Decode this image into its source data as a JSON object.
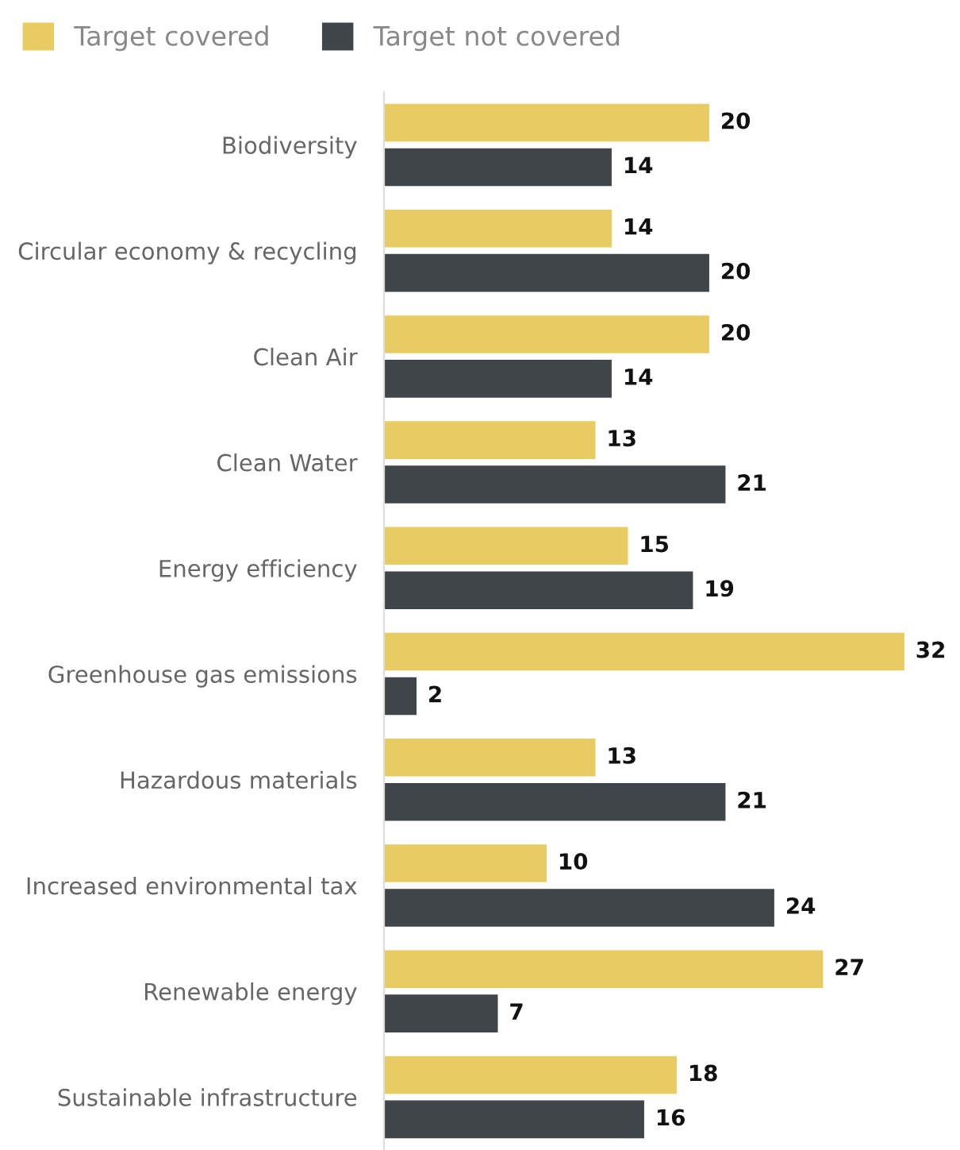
{
  "chart_data": {
    "type": "bar",
    "orientation": "horizontal",
    "categories": [
      "Biodiversity",
      "Circular economy & recycling",
      "Clean Air",
      "Clean Water",
      "Energy efficiency",
      "Greenhouse gas emissions",
      "Hazardous materials",
      "Increased environmental tax",
      "Renewable energy",
      "Sustainable infrastructure"
    ],
    "series": [
      {
        "name": "Target covered",
        "color": "#e8cb62",
        "values": [
          20,
          14,
          20,
          13,
          15,
          32,
          13,
          10,
          27,
          18
        ]
      },
      {
        "name": "Target not covered",
        "color": "#3f4548",
        "values": [
          14,
          20,
          14,
          21,
          19,
          2,
          21,
          24,
          7,
          16
        ]
      }
    ],
    "data_labels": true,
    "legend": "top left",
    "grid": false
  }
}
